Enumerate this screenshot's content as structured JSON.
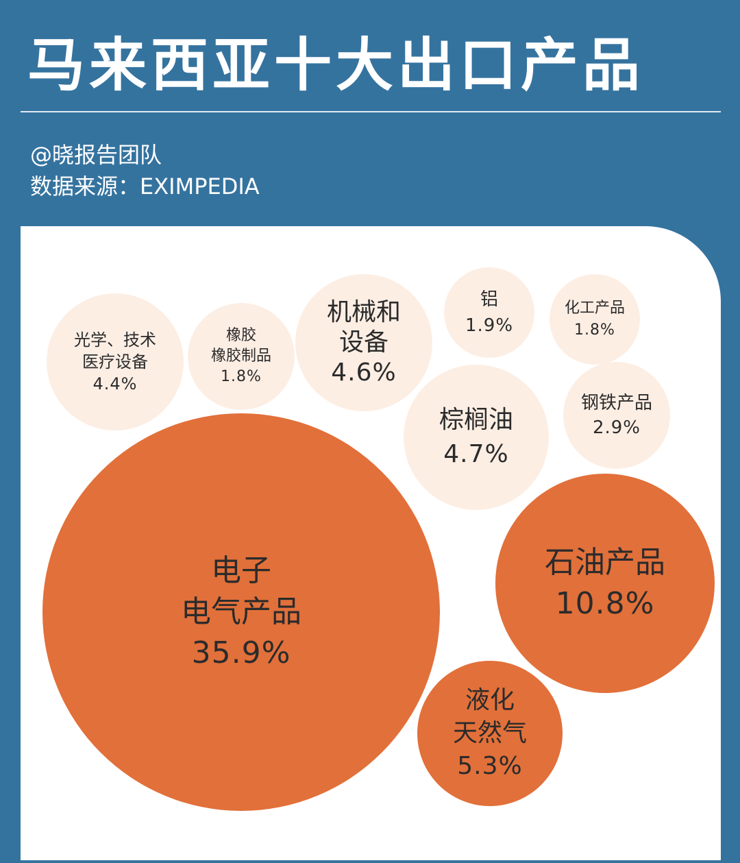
{
  "header": {
    "title": "马来西亚十大出口产品",
    "credit": "@晓报告团队",
    "source": "数据来源：EXIMPEDIA"
  },
  "colors": {
    "background": "#35739f",
    "panel": "#ffffff",
    "large": "#e2703a",
    "small": "#fdeee4",
    "text_dark": "#2b2b2b"
  },
  "chart_data": {
    "type": "bubble",
    "title": "马来西亚十大出口产品",
    "unit": "%",
    "items": [
      {
        "lines": [
          "光学、技术",
          "医疗设备"
        ],
        "value": 4.4,
        "label": "4.4%"
      },
      {
        "lines": [
          "橡胶",
          "橡胶制品"
        ],
        "value": 1.8,
        "label": "1.8%"
      },
      {
        "lines": [
          "机械和",
          "设备"
        ],
        "value": 4.6,
        "label": "4.6%"
      },
      {
        "lines": [
          "铝"
        ],
        "value": 1.9,
        "label": "1.9%"
      },
      {
        "lines": [
          "化工产品"
        ],
        "value": 1.8,
        "label": "1.8%"
      },
      {
        "lines": [
          "棕榈油"
        ],
        "value": 4.7,
        "label": "4.7%"
      },
      {
        "lines": [
          "钢铁产品"
        ],
        "value": 2.9,
        "label": "2.9%"
      },
      {
        "lines": [
          "电子",
          "电气产品"
        ],
        "value": 35.9,
        "label": "35.9%"
      },
      {
        "lines": [
          "石油产品"
        ],
        "value": 10.8,
        "label": "10.8%"
      },
      {
        "lines": [
          "液化",
          "天然气"
        ],
        "value": 5.3,
        "label": "5.3%"
      }
    ]
  }
}
